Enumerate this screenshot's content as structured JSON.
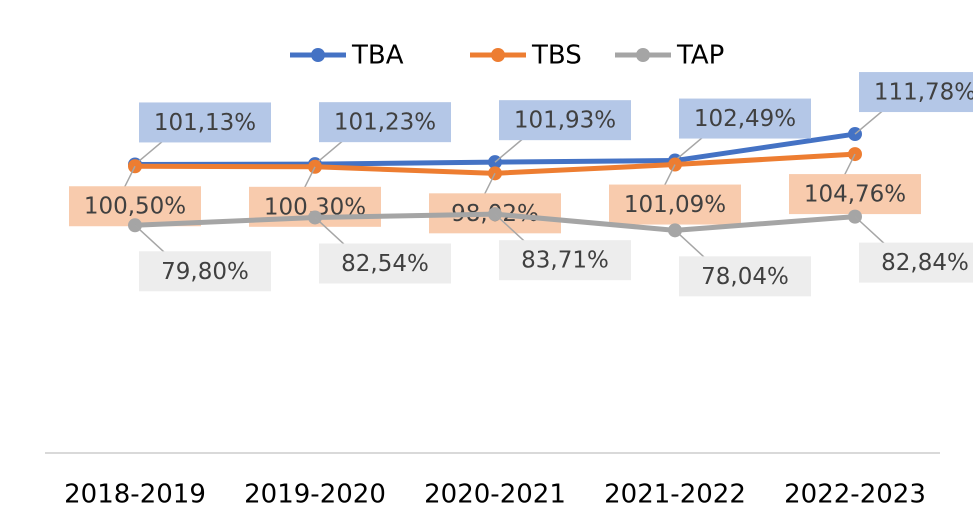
{
  "chart_data": {
    "type": "line",
    "categories": [
      "2018-2019",
      "2019-2020",
      "2020-2021",
      "2021-2022",
      "2022-2023"
    ],
    "series": [
      {
        "name": "TBA",
        "color": "#4472c4",
        "label_color": "#b4c7e7",
        "values": [
          101.13,
          101.23,
          101.93,
          102.49,
          111.78
        ],
        "value_labels": [
          "101,13%",
          "101,23%",
          "101,93%",
          "102,49%",
          "111,78%"
        ]
      },
      {
        "name": "TBS",
        "color": "#ed7d31",
        "label_color": "#f8cbad",
        "values": [
          100.5,
          100.3,
          98.02,
          101.09,
          104.76
        ],
        "value_labels": [
          "100,50%",
          "100,30%",
          "98,02%",
          "101,09%",
          "104,76%"
        ]
      },
      {
        "name": "TAP",
        "color": "#a5a5a5",
        "label_color": "#ededed",
        "values": [
          79.8,
          82.54,
          83.71,
          78.04,
          82.84
        ],
        "value_labels": [
          "79,80%",
          "82,54%",
          "83,71%",
          "78,04%",
          "82,84%"
        ]
      }
    ],
    "ylim": [
      0,
      150
    ],
    "legend": "top"
  }
}
